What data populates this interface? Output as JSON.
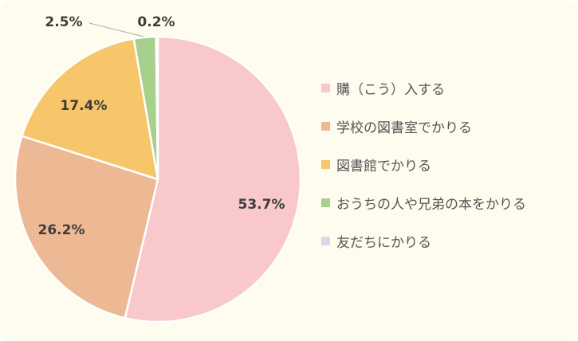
{
  "chart_data": {
    "type": "pie",
    "start_angle_deg": 0,
    "direction": "clockwise",
    "slices": [
      {
        "label": "購（こう）入する",
        "value": 53.7,
        "display": "53.7%",
        "color": "#f8c8cb"
      },
      {
        "label": "学校の図書室でかりる",
        "value": 26.2,
        "display": "26.2%",
        "color": "#edb994"
      },
      {
        "label": "図書館でかりる",
        "value": 17.4,
        "display": "17.4%",
        "color": "#f7c56a"
      },
      {
        "label": "おうちの人や兄弟の本をかりる",
        "value": 2.5,
        "display": "2.5%",
        "color": "#a8d08d"
      },
      {
        "label": "友だちにかりる",
        "value": 0.2,
        "display": "0.2%",
        "color": "#d8d8e6"
      }
    ],
    "legend_position": "right"
  }
}
